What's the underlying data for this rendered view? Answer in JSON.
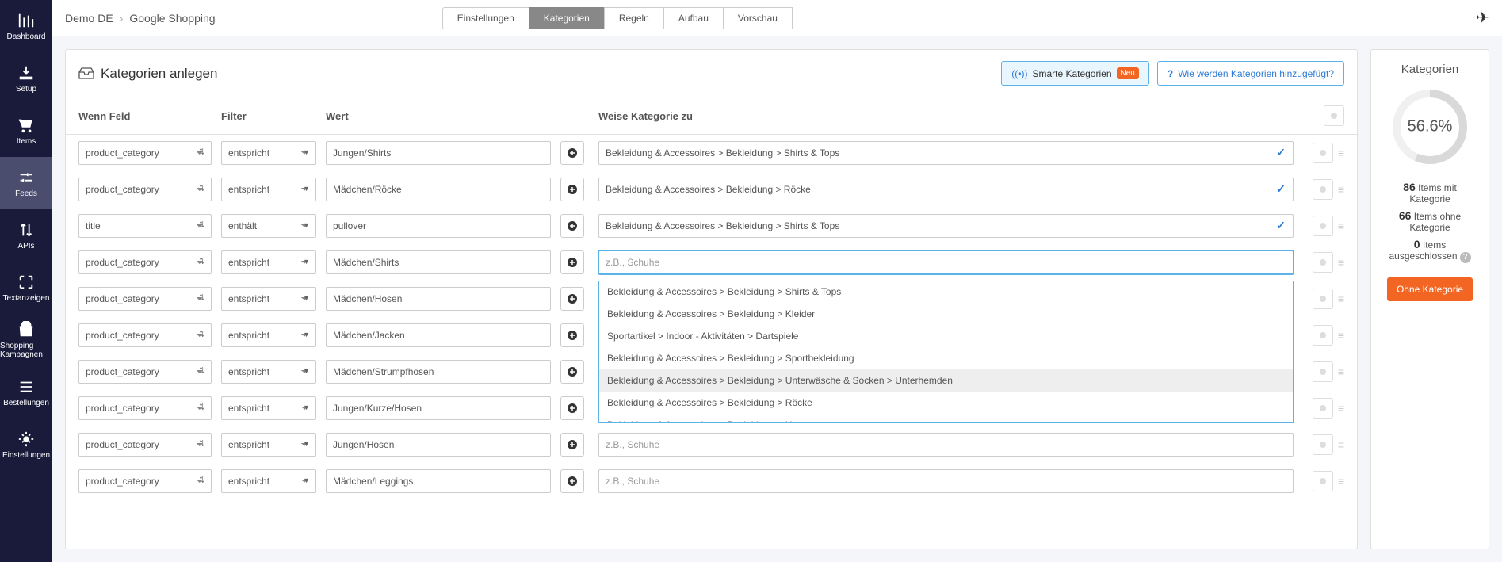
{
  "sidebar": {
    "items": [
      {
        "id": "dashboard",
        "label": "Dashboard",
        "icon": "bars"
      },
      {
        "id": "setup",
        "label": "Setup",
        "icon": "download"
      },
      {
        "id": "items",
        "label": "Items",
        "icon": "cart"
      },
      {
        "id": "feeds",
        "label": "Feeds",
        "icon": "sliders",
        "active": true
      },
      {
        "id": "apis",
        "label": "APIs",
        "icon": "arrows"
      },
      {
        "id": "textads",
        "label": "Textanzeigen",
        "icon": "expand"
      },
      {
        "id": "shopping",
        "label": "Shopping Kampagnen",
        "icon": "bag"
      },
      {
        "id": "orders",
        "label": "Bestellungen",
        "icon": "list"
      },
      {
        "id": "settings",
        "label": "Einstellungen",
        "icon": "gear"
      }
    ]
  },
  "breadcrumb": {
    "a": "Demo DE",
    "b": "Google Shopping"
  },
  "steps": [
    "Einstellungen",
    "Kategorien",
    "Regeln",
    "Aufbau",
    "Vorschau"
  ],
  "active_step": 1,
  "panel": {
    "title": "Kategorien anlegen",
    "smart_btn": "Smarte Kategorien",
    "smart_badge": "Neu",
    "help_link": "Wie werden Kategorien hinzugefügt?"
  },
  "columns": {
    "field": "Wenn Feld",
    "filter": "Filter",
    "value": "Wert",
    "assign": "Weise Kategorie zu"
  },
  "placeholder": "z.B., Schuhe",
  "rows": [
    {
      "field": "product_category",
      "filter": "entspricht",
      "value": "Jungen/Shirts",
      "cat": "Bekleidung & Accessoires > Bekleidung > Shirts & Tops",
      "filled": true
    },
    {
      "field": "product_category",
      "filter": "entspricht",
      "value": "Mädchen/Röcke",
      "cat": "Bekleidung & Accessoires > Bekleidung > Röcke",
      "filled": true
    },
    {
      "field": "title",
      "filter": "enthält",
      "value": "pullover",
      "cat": "Bekleidung & Accessoires > Bekleidung > Shirts & Tops",
      "filled": true
    },
    {
      "field": "product_category",
      "filter": "entspricht",
      "value": "Mädchen/Shirts",
      "cat": "",
      "filled": false,
      "active": true,
      "dropdown": true
    },
    {
      "field": "product_category",
      "filter": "entspricht",
      "value": "Mädchen/Hosen",
      "cat": "",
      "filled": false
    },
    {
      "field": "product_category",
      "filter": "entspricht",
      "value": "Mädchen/Jacken",
      "cat": "",
      "filled": false
    },
    {
      "field": "product_category",
      "filter": "entspricht",
      "value": "Mädchen/Strumpfhosen",
      "cat": "",
      "filled": false
    },
    {
      "field": "product_category",
      "filter": "entspricht",
      "value": "Jungen/Kurze/Hosen",
      "cat": "",
      "filled": false
    },
    {
      "field": "product_category",
      "filter": "entspricht",
      "value": "Jungen/Hosen",
      "cat": "",
      "filled": false
    },
    {
      "field": "product_category",
      "filter": "entspricht",
      "value": "Mädchen/Leggings",
      "cat": "",
      "filled": false
    }
  ],
  "dropdown_options": [
    "Bekleidung & Accessoires > Bekleidung > Shirts & Tops",
    "Bekleidung & Accessoires > Bekleidung > Kleider",
    "Sportartikel > Indoor - Aktivitäten > Dartspiele",
    "Bekleidung & Accessoires > Bekleidung > Sportbekleidung",
    "Bekleidung & Accessoires > Bekleidung > Unterwäsche & Socken > Unterhemden",
    "Bekleidung & Accessoires > Bekleidung > Röcke",
    "Bekleidung & Accessoires > Bekleidung > Hosen"
  ],
  "dropdown_hover_index": 4,
  "stats": {
    "title": "Kategorien",
    "percent": "56.6%",
    "percent_value": 56.6,
    "with_cat_n": "86",
    "with_cat_t": "Items mit Kategorie",
    "no_cat_n": "66",
    "no_cat_t": "Items ohne Kategorie",
    "excl_n": "0",
    "excl_t": "Items ausgeschlossen",
    "btn": "Ohne Kategorie"
  },
  "colors": {
    "sidebar_bg": "#1a1b3a",
    "sidebar_active": "#4a4d6e",
    "accent": "#5bb3e8",
    "orange": "#f26522",
    "link": "#2e7cd6",
    "donut_fill": "#d9d9d9",
    "donut_track": "#f0f0f0"
  }
}
